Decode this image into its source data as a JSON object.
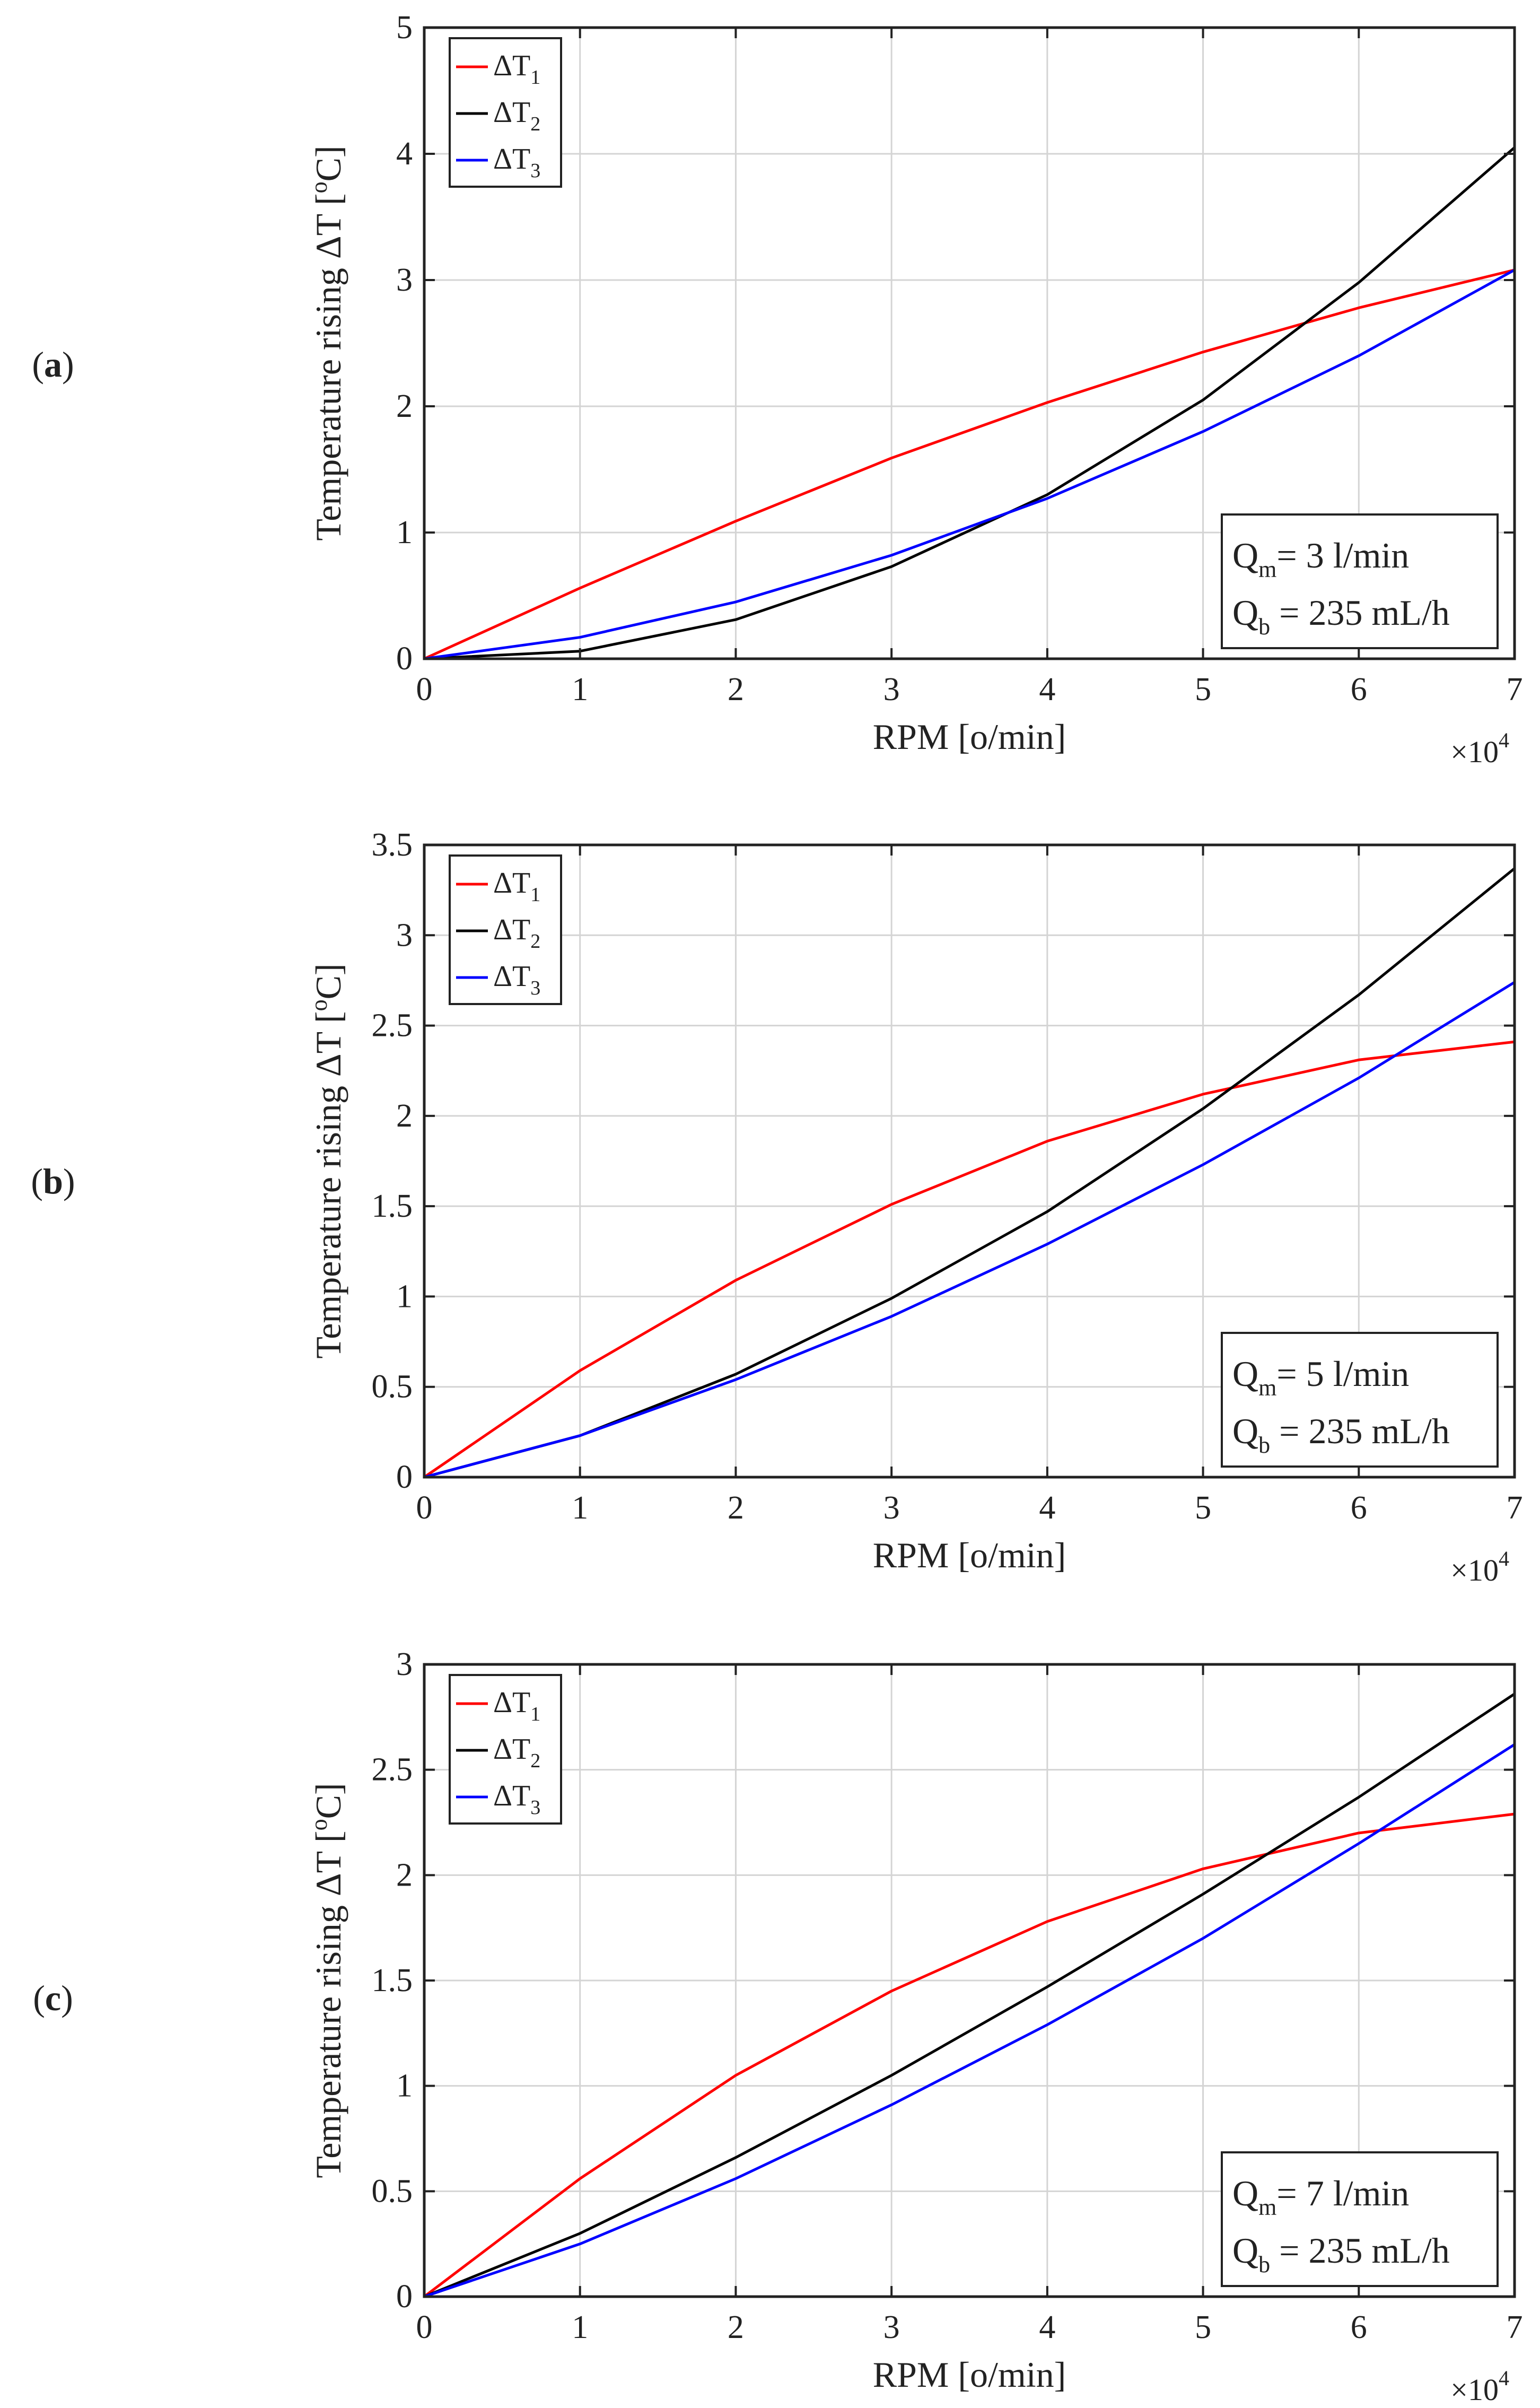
{
  "chart_data": [
    {
      "type": "line",
      "panel_label": "a",
      "x": [
        0,
        1,
        2,
        3,
        4,
        5,
        6,
        7
      ],
      "xlim": [
        0,
        7
      ],
      "ylim": [
        0,
        5
      ],
      "xticks": [
        "0",
        "1",
        "2",
        "3",
        "4",
        "5",
        "6",
        "7"
      ],
      "yticks": [
        "0",
        "1",
        "2",
        "3",
        "4",
        "5"
      ],
      "x_multiplier": {
        "base": "×10",
        "exp": "4"
      },
      "xlabel": "RPM [o/min]",
      "ylabel": {
        "pre": "Temperature rising  ΔT [",
        "sup": "o",
        "post": "C]"
      },
      "grid": true,
      "legend_position": "top-left",
      "series": [
        {
          "name": "ΔT",
          "sub": "1",
          "color": "#ff0000",
          "values": [
            0,
            0.56,
            1.09,
            1.59,
            2.03,
            2.43,
            2.78,
            3.08
          ]
        },
        {
          "name": "ΔT",
          "sub": "2",
          "color": "#000000",
          "values": [
            0,
            0.06,
            0.31,
            0.73,
            1.3,
            2.05,
            2.98,
            4.05
          ]
        },
        {
          "name": "ΔT",
          "sub": "3",
          "color": "#0000ff",
          "values": [
            0,
            0.17,
            0.45,
            0.82,
            1.27,
            1.8,
            2.4,
            3.08
          ]
        }
      ],
      "annotation": [
        {
          "pre": "Q",
          "sub": "m",
          "post": "= 3 l/min"
        },
        {
          "pre": "Q",
          "sub": "b",
          "post": " = 235 mL/h"
        }
      ]
    },
    {
      "type": "line",
      "panel_label": "b",
      "x": [
        0,
        1,
        2,
        3,
        4,
        5,
        6,
        7
      ],
      "xlim": [
        0,
        7
      ],
      "ylim": [
        0,
        3.5
      ],
      "xticks": [
        "0",
        "1",
        "2",
        "3",
        "4",
        "5",
        "6",
        "7"
      ],
      "yticks": [
        "0",
        "0.5",
        "1",
        "1.5",
        "2",
        "2.5",
        "3",
        "3.5"
      ],
      "x_multiplier": {
        "base": "×10",
        "exp": "4"
      },
      "xlabel": "RPM [o/min]",
      "ylabel": {
        "pre": "Temperature rising  ΔT [",
        "sup": "o",
        "post": "C]"
      },
      "grid": true,
      "legend_position": "top-left",
      "series": [
        {
          "name": "ΔT",
          "sub": "1",
          "color": "#ff0000",
          "values": [
            0,
            0.59,
            1.09,
            1.51,
            1.86,
            2.12,
            2.31,
            2.41
          ]
        },
        {
          "name": "ΔT",
          "sub": "2",
          "color": "#000000",
          "values": [
            0,
            0.23,
            0.57,
            0.99,
            1.47,
            2.04,
            2.67,
            3.37
          ]
        },
        {
          "name": "ΔT",
          "sub": "3",
          "color": "#0000ff",
          "values": [
            0,
            0.23,
            0.54,
            0.89,
            1.29,
            1.73,
            2.21,
            2.74
          ]
        }
      ],
      "annotation": [
        {
          "pre": "Q",
          "sub": "m",
          "post": "= 5 l/min"
        },
        {
          "pre": "Q",
          "sub": "b",
          "post": " = 235 mL/h"
        }
      ]
    },
    {
      "type": "line",
      "panel_label": "c",
      "x": [
        0,
        1,
        2,
        3,
        4,
        5,
        6,
        7
      ],
      "xlim": [
        0,
        7
      ],
      "ylim": [
        0,
        3
      ],
      "xticks": [
        "0",
        "1",
        "2",
        "3",
        "4",
        "5",
        "6",
        "7"
      ],
      "yticks": [
        "0",
        "0.5",
        "1",
        "1.5",
        "2",
        "2.5",
        "3"
      ],
      "x_multiplier": {
        "base": "×10",
        "exp": "4"
      },
      "xlabel": "RPM [o/min]",
      "ylabel": {
        "pre": "Temperature rising  ΔT [",
        "sup": "o",
        "post": "C]"
      },
      "grid": true,
      "legend_position": "top-left",
      "series": [
        {
          "name": "ΔT",
          "sub": "1",
          "color": "#ff0000",
          "values": [
            0,
            0.56,
            1.05,
            1.45,
            1.78,
            2.03,
            2.2,
            2.29
          ]
        },
        {
          "name": "ΔT",
          "sub": "2",
          "color": "#000000",
          "values": [
            0,
            0.3,
            0.66,
            1.05,
            1.47,
            1.91,
            2.37,
            2.86
          ]
        },
        {
          "name": "ΔT",
          "sub": "3",
          "color": "#0000ff",
          "values": [
            0,
            0.25,
            0.56,
            0.91,
            1.29,
            1.7,
            2.15,
            2.62
          ]
        }
      ],
      "annotation": [
        {
          "pre": "Q",
          "sub": "m",
          "post": "= 7 l/min"
        },
        {
          "pre": "Q",
          "sub": "b",
          "post": " = 235 mL/h"
        }
      ]
    }
  ]
}
